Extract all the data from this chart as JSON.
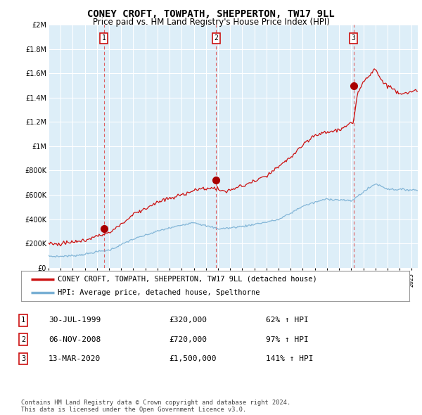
{
  "title": "CONEY CROFT, TOWPATH, SHEPPERTON, TW17 9LL",
  "subtitle": "Price paid vs. HM Land Registry's House Price Index (HPI)",
  "title_fontsize": 10,
  "subtitle_fontsize": 8.5,
  "background_color": "#ffffff",
  "plot_bg_color": "#ddeef8",
  "grid_color": "#ffffff",
  "hpi_color": "#7ab0d4",
  "price_color": "#cc1111",
  "marker_color": "#aa0000",
  "ylim": [
    0,
    2000000
  ],
  "yticks": [
    0,
    200000,
    400000,
    600000,
    800000,
    1000000,
    1200000,
    1400000,
    1600000,
    1800000,
    2000000
  ],
  "sales": [
    {
      "date_num": 1999.57,
      "price": 320000,
      "label": "1"
    },
    {
      "date_num": 2008.85,
      "price": 720000,
      "label": "2"
    },
    {
      "date_num": 2020.2,
      "price": 1500000,
      "label": "3"
    }
  ],
  "vline_color": "#dd4444",
  "sale_dates": [
    "30-JUL-1999",
    "06-NOV-2008",
    "13-MAR-2020"
  ],
  "sale_prices": [
    "£320,000",
    "£720,000",
    "£1,500,000"
  ],
  "sale_hpi": [
    "62% ↑ HPI",
    "97% ↑ HPI",
    "141% ↑ HPI"
  ],
  "legend_label_price": "CONEY CROFT, TOWPATH, SHEPPERTON, TW17 9LL (detached house)",
  "legend_label_hpi": "HPI: Average price, detached house, Spelthorne",
  "footer": "Contains HM Land Registry data © Crown copyright and database right 2024.\nThis data is licensed under the Open Government Licence v3.0.",
  "xmin": 1995,
  "xmax": 2025.5
}
